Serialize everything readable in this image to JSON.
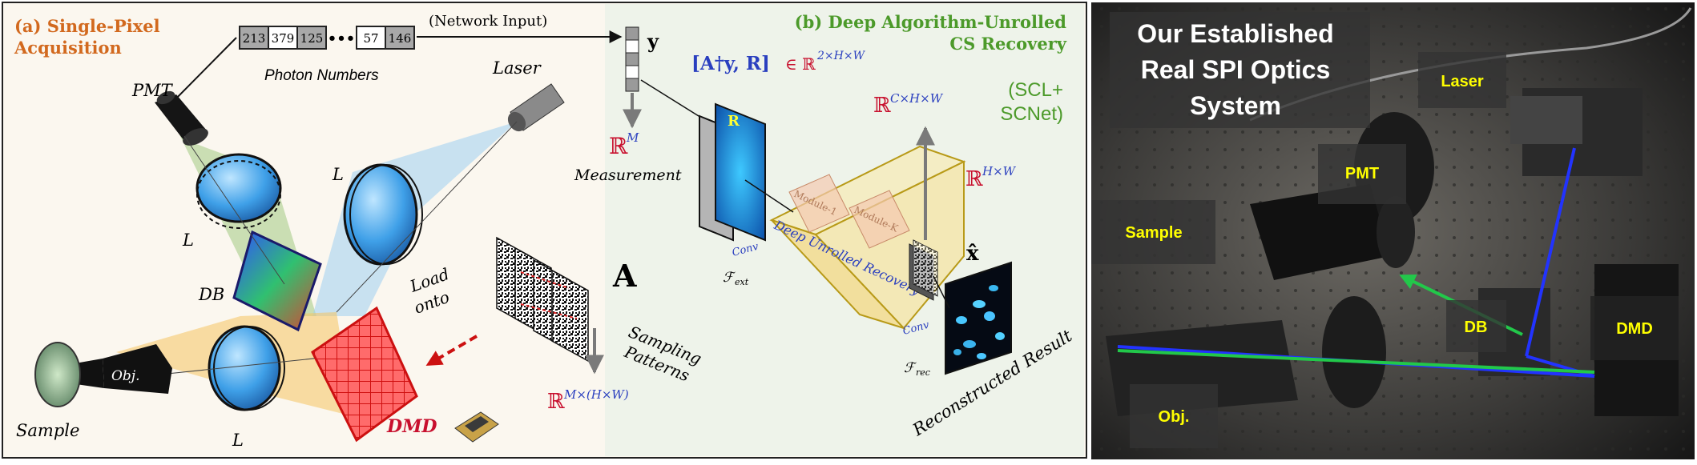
{
  "panel_a": {
    "title_line1": "(a) Single-Pixel",
    "title_line2": "Acquisition",
    "photon_values": [
      "213",
      "379",
      "125",
      "57",
      "146"
    ],
    "ellipsis": "•••",
    "photon_caption": "Photon Numbers",
    "network_input": "(Network Input)",
    "vector_label": "y",
    "measurement_space": {
      "base": "ℝ",
      "sup": "M"
    },
    "measurement_label": "Measurement",
    "pmt": "PMT",
    "laser": "Laser",
    "lens": "L",
    "db": "DB",
    "obj": "Obj.",
    "sample": "Sample",
    "dmd": "DMD",
    "load_line1": "Load",
    "load_line2": "onto",
    "patterns_symbol": "A",
    "patterns_line1": "Sampling",
    "patterns_line2": "Patterns",
    "pattern_space": {
      "base": "ℝ",
      "sup": "M×(H×W)"
    }
  },
  "panel_b": {
    "title_line1": "(b) Deep Algorithm-Unrolled",
    "title_line2": "CS Recovery",
    "input_tuple": "[A†y, R]",
    "input_space": "∈ ℝ",
    "input_space_sup": "2×H×W",
    "r_label": "R",
    "conv_label": "Conv",
    "f_ext": "ℱ",
    "f_ext_sub": "ext",
    "module_1": "Module-1",
    "module_k": "Module-K",
    "deep_unrolled": "Deep Unrolled Recovery",
    "feature_space": {
      "base": "ℝ",
      "sup": "C×H×W"
    },
    "scl_line1": "(SCL+",
    "scl_line2": "SCNet)",
    "output_space": {
      "base": "ℝ",
      "sup": "H×W"
    },
    "x_hat": "x̂",
    "conv_label_2": "Conv",
    "f_rec": "ℱ",
    "f_rec_sub": "rec",
    "reconstructed": "Reconstructed Result"
  },
  "photo": {
    "title_line1": "Our Established",
    "title_line2": "Real SPI Optics",
    "title_line3": "System",
    "labels": {
      "laser": "Laser",
      "pmt": "PMT",
      "sample": "Sample",
      "db": "DB",
      "dmd": "DMD",
      "obj": "Obj."
    }
  },
  "colors": {
    "panel_a_title": "#d2691e",
    "panel_b_title": "#4c9a2a",
    "math_red": "#c8102e",
    "math_blue": "#2a3fbf",
    "photo_label": "#ffff00",
    "beam_green": "#22c84a",
    "beam_blue": "#2233ff"
  }
}
